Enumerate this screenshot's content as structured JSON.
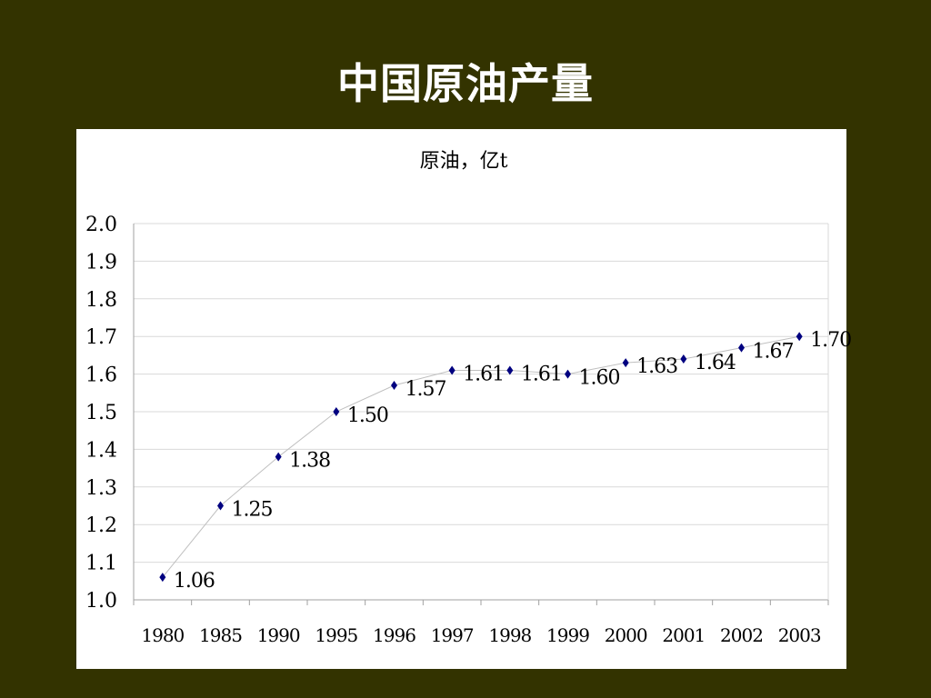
{
  "slide": {
    "title": "中国原油产量"
  },
  "chart_data": {
    "type": "line",
    "title": "原油，亿t",
    "xlabel": "",
    "ylabel": "",
    "categories": [
      "1980",
      "1985",
      "1990",
      "1995",
      "1996",
      "1997",
      "1998",
      "1999",
      "2000",
      "2001",
      "2002",
      "2003"
    ],
    "series": [
      {
        "values": [
          1.06,
          1.25,
          1.38,
          1.5,
          1.57,
          1.61,
          1.61,
          1.6,
          1.63,
          1.64,
          1.67,
          1.7
        ],
        "data_labels": [
          "1.06",
          "1.25",
          "1.38",
          "1.50",
          "1.57",
          "1.61",
          "1.61",
          "1.60",
          "1.63",
          "1.64",
          "1.67",
          "1.70"
        ]
      }
    ],
    "ylim": [
      1.0,
      2.0
    ],
    "yticks": [
      "1.0",
      "1.1",
      "1.2",
      "1.3",
      "1.4",
      "1.5",
      "1.6",
      "1.7",
      "1.8",
      "1.9",
      "2.0"
    ],
    "grid": true,
    "legend": "none",
    "colors": {
      "marker": "#000080",
      "line": "#c0c0c0",
      "gridline": "#d9d9d9",
      "axis": "#a0a0a0"
    }
  }
}
